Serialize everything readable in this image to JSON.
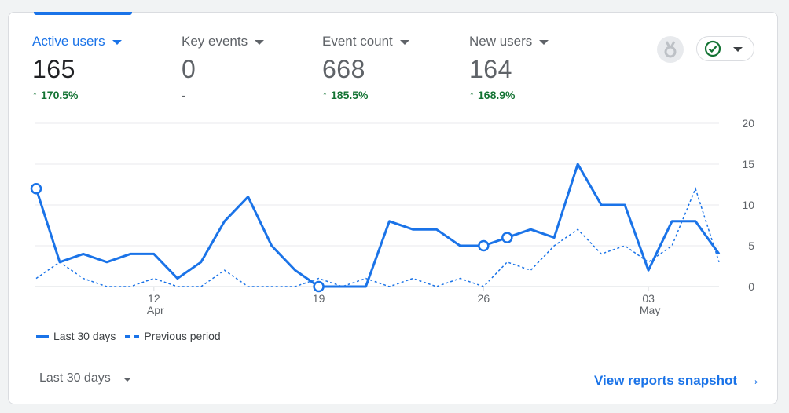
{
  "metrics": [
    {
      "label": "Active users",
      "value": "165",
      "change": "170.5%",
      "trend": "up",
      "active": true
    },
    {
      "label": "Key events",
      "value": "0",
      "change": "-",
      "trend": "none",
      "active": false
    },
    {
      "label": "Event count",
      "value": "668",
      "change": "185.5%",
      "trend": "up",
      "active": false
    },
    {
      "label": "New users",
      "value": "164",
      "change": "168.9%",
      "trend": "up",
      "active": false
    }
  ],
  "icons": {
    "trend_up": "↑",
    "badge": "medal-icon",
    "status": "check-circle-icon",
    "arrow": "arrow-right-icon"
  },
  "colors": {
    "accent": "#1a73e8",
    "positive": "#137333",
    "gridline": "#e8eaed",
    "muted": "#5f6368"
  },
  "chart_data": {
    "type": "line",
    "x": [
      "Apr 7",
      "Apr 8",
      "Apr 9",
      "Apr 10",
      "Apr 11",
      "Apr 12",
      "Apr 13",
      "Apr 14",
      "Apr 15",
      "Apr 16",
      "Apr 17",
      "Apr 18",
      "Apr 19",
      "Apr 20",
      "Apr 21",
      "Apr 22",
      "Apr 23",
      "Apr 24",
      "Apr 25",
      "Apr 26",
      "Apr 27",
      "Apr 28",
      "Apr 29",
      "Apr 30",
      "May 1",
      "May 2",
      "May 3",
      "May 4",
      "May 5",
      "May 6"
    ],
    "series": [
      {
        "name": "Last 30 days",
        "style": "solid",
        "values": [
          12,
          3,
          4,
          3,
          4,
          4,
          1,
          3,
          8,
          11,
          5,
          2,
          0,
          0,
          0,
          8,
          7,
          7,
          5,
          5,
          6,
          7,
          6,
          15,
          10,
          10,
          2,
          8,
          8,
          4
        ],
        "markers": [
          0,
          12,
          19,
          20
        ]
      },
      {
        "name": "Previous period",
        "style": "dashed",
        "values": [
          1,
          3,
          1,
          0,
          0,
          1,
          0,
          0,
          2,
          0,
          0,
          0,
          1,
          0,
          1,
          0,
          1,
          0,
          1,
          0,
          3,
          2,
          5,
          7,
          4,
          5,
          3,
          5,
          12,
          3
        ]
      }
    ],
    "x_ticks": [
      {
        "index": 5,
        "label": "12",
        "month": "Apr"
      },
      {
        "index": 12,
        "label": "19",
        "month": ""
      },
      {
        "index": 19,
        "label": "26",
        "month": ""
      },
      {
        "index": 26,
        "label": "03",
        "month": "May"
      }
    ],
    "y_ticks": [
      0,
      5,
      10,
      15,
      20
    ],
    "ylim": [
      0,
      20
    ],
    "y_axis_side": "right",
    "grid": true,
    "legend_position": "bottom-left"
  },
  "legend": {
    "current": "Last 30 days",
    "previous": "Previous period"
  },
  "footer": {
    "date_range": "Last 30 days",
    "view_link": "View reports snapshot"
  }
}
